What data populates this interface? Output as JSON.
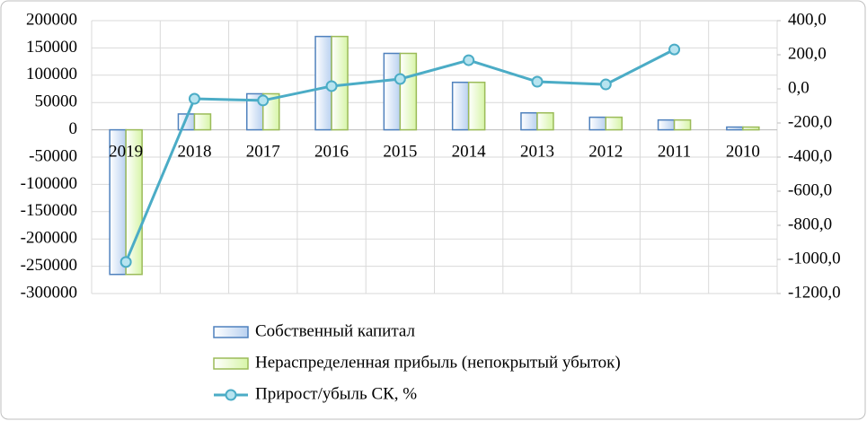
{
  "chart_data": {
    "type": "bar",
    "categories": [
      "2019",
      "2018",
      "2017",
      "2016",
      "2015",
      "2014",
      "2013",
      "2012",
      "2011",
      "2010"
    ],
    "series": [
      {
        "name": "Собственный капитал",
        "type": "bar",
        "color": "#4f81bd",
        "fill": "#b9d1f0",
        "values": [
          -265000,
          29000,
          66000,
          171000,
          140000,
          87000,
          31000,
          23000,
          18000,
          5000
        ]
      },
      {
        "name": "Нераспределенная прибыль (непокрытый убыток)",
        "type": "bar",
        "color": "#9bbb59",
        "fill": "#d7f5a8",
        "values": [
          -265000,
          29000,
          66000,
          171000,
          140000,
          87000,
          31000,
          23000,
          18000,
          5000
        ]
      },
      {
        "name": "Прирост/убыль СК, %",
        "type": "line",
        "axis": "y2",
        "color": "#4bacc6",
        "fill": "#b7e4f0",
        "values": [
          -1015,
          -58,
          -68,
          16,
          58,
          168,
          42,
          26,
          231,
          null
        ]
      }
    ],
    "ylim": [
      -300000,
      200000
    ],
    "yticks": [
      -300000,
      -250000,
      -200000,
      -150000,
      -100000,
      -50000,
      0,
      50000,
      100000,
      150000,
      200000
    ],
    "y2lim": [
      -1200,
      400
    ],
    "y2ticks": [
      {
        "value": -1200,
        "label": "-1200,0"
      },
      {
        "value": -1000,
        "label": "-1000,0"
      },
      {
        "value": -800,
        "label": "-800,0"
      },
      {
        "value": -600,
        "label": "-600,0"
      },
      {
        "value": -400,
        "label": "-400,0"
      },
      {
        "value": -200,
        "label": "-200,0"
      },
      {
        "value": 0,
        "label": "0,0"
      },
      {
        "value": 200,
        "label": "200,0"
      },
      {
        "value": 400,
        "label": "400,0"
      }
    ],
    "grid": true
  }
}
